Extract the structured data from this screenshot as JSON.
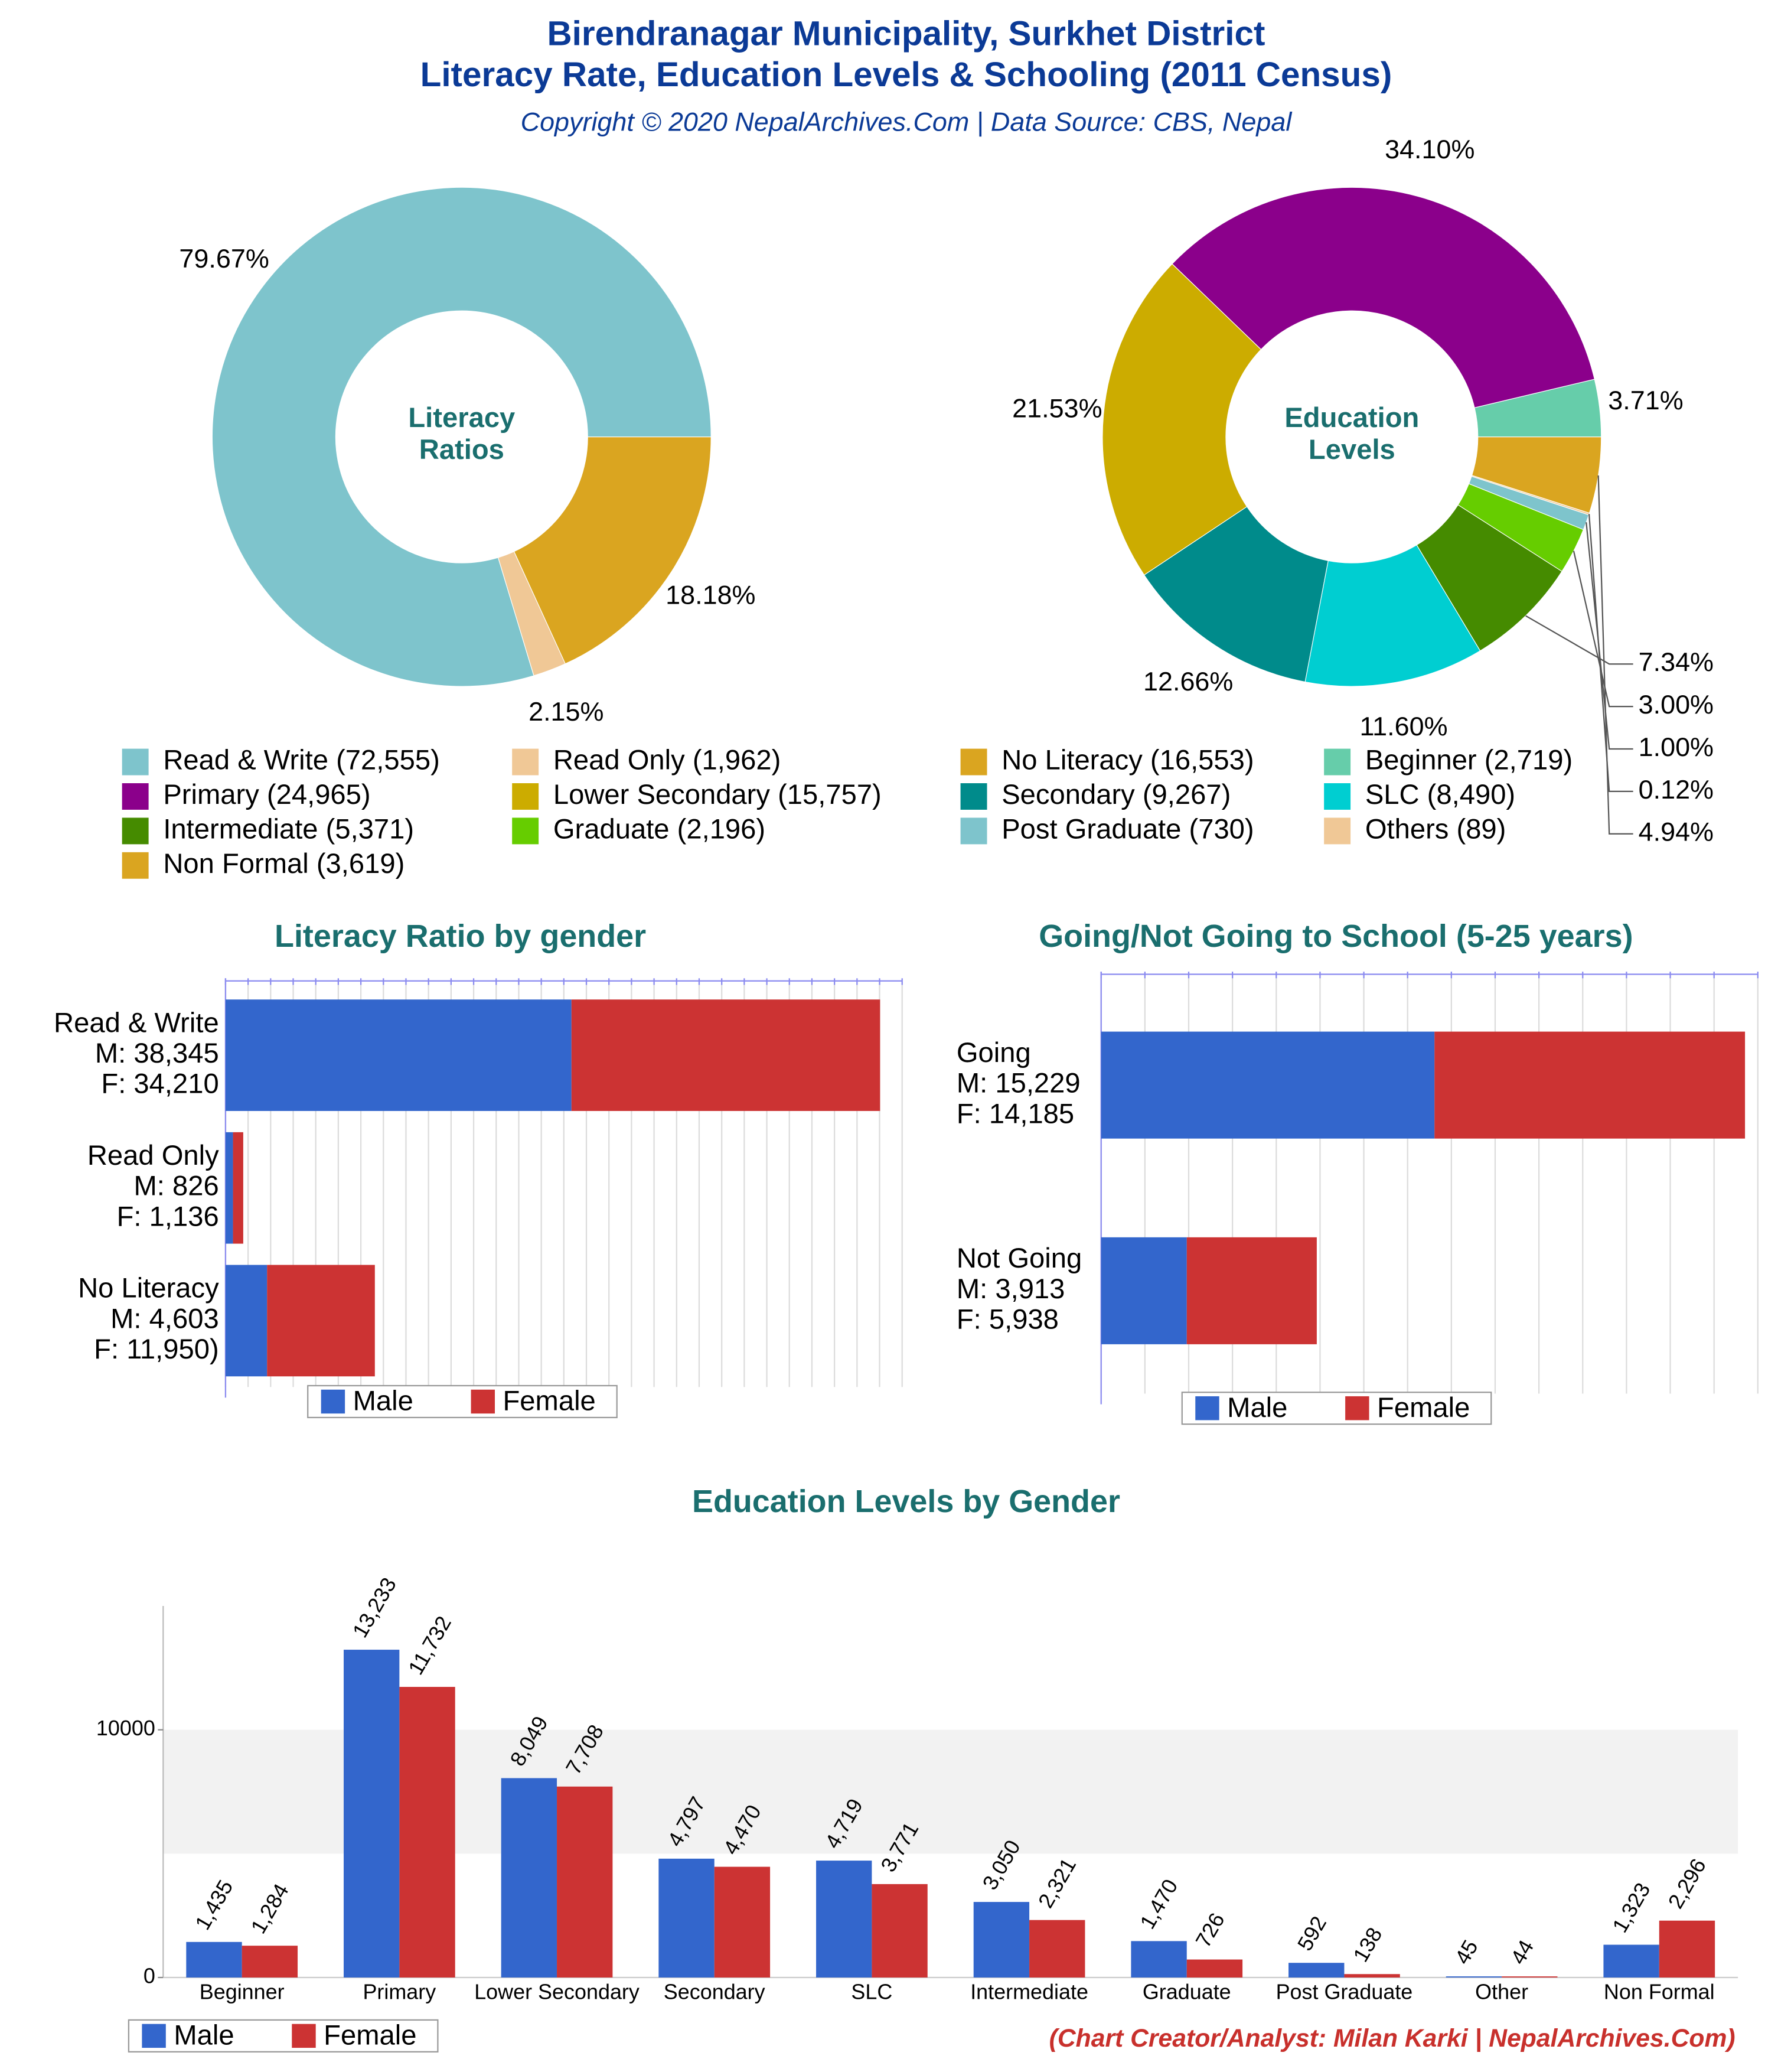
{
  "title": [
    "Birendranagar Municipality, Surkhet District",
    "Literacy Rate, Education Levels & Schooling (2011 Census)"
  ],
  "subtitle": "Copyright © 2020 NepalArchives.Com | Data Source: CBS, Nepal",
  "credit": "(Chart Creator/Analyst: Milan Karki | NepalArchives.Com)",
  "chart_data": [
    {
      "type": "donut",
      "center_label": [
        "Literacy",
        "Ratios"
      ],
      "categories": [
        "Read & Write (72,555)",
        "Read Only (1,962)",
        "No Literacy (16,553)"
      ],
      "values": [
        79.67,
        2.15,
        18.18
      ],
      "value_labels": [
        "79.67%",
        "2.15%",
        "18.18%"
      ],
      "colors": [
        "#7ec4cc",
        "#f0c896",
        "#daa520"
      ]
    },
    {
      "type": "donut",
      "center_label": [
        "Education",
        "Levels"
      ],
      "categories": [
        "Beginner (2,719)",
        "Primary (24,965)",
        "Lower Secondary (15,757)",
        "Secondary (9,267)",
        "SLC (8,490)",
        "Intermediate (5,371)",
        "Graduate (2,196)",
        "Post Graduate (730)",
        "Others (89)",
        "Non Formal (3,619)"
      ],
      "values": [
        3.71,
        34.1,
        21.53,
        12.66,
        11.6,
        7.34,
        3.0,
        1.0,
        0.12,
        4.94
      ],
      "value_labels": [
        "3.71%",
        "34.10%",
        "21.53%",
        "12.66%",
        "11.60%",
        "7.34%",
        "3.00%",
        "1.00%",
        "0.12%",
        "4.94%"
      ],
      "colors": [
        "#66cdaa",
        "#8b008b",
        "#ccac00",
        "#008b8b",
        "#00ced1",
        "#458b00",
        "#66cd00",
        "#7ec4cc",
        "#f0c896",
        "#daa520"
      ]
    },
    {
      "type": "hbar_stacked",
      "title": "Literacy Ratio by gender",
      "categories": [
        "Read & Write",
        "Read Only",
        "No Literacy"
      ],
      "series": [
        {
          "name": "Male",
          "color": "#3366cc",
          "values": [
            38345,
            826,
            4603
          ],
          "value_labels": [
            "M: 38,345",
            "M: 826",
            "M: 4,603"
          ]
        },
        {
          "name": "Female",
          "color": "#cc3333",
          "values": [
            34210,
            1136,
            11950
          ],
          "value_labels": [
            "F: 34,210",
            "F: 1,136",
            "F: 11,950)"
          ]
        }
      ],
      "xlim": [
        0,
        75000
      ],
      "xticks": [
        0,
        2500,
        5000,
        7500,
        10000,
        12500,
        15000,
        17500,
        20000,
        22500,
        25000,
        27500,
        30000,
        32500,
        35000,
        37500,
        40000,
        42500,
        45000,
        47500,
        50000,
        52500,
        55000,
        57500,
        60000,
        62500,
        65000,
        67500,
        70000,
        72500,
        75000
      ],
      "grid": true
    },
    {
      "type": "hbar_stacked",
      "title": "Going/Not Going to School (5-25 years)",
      "categories": [
        "Going",
        "Not Going"
      ],
      "series": [
        {
          "name": "Male",
          "color": "#3366cc",
          "values": [
            15229,
            3913
          ],
          "value_labels": [
            "M: 15,229",
            "M: 3,913"
          ]
        },
        {
          "name": "Female",
          "color": "#cc3333",
          "values": [
            14185,
            5938
          ],
          "value_labels": [
            "F: 14,185",
            "F: 5,938"
          ]
        }
      ],
      "xlim": [
        0,
        30000
      ],
      "xticks": [
        0,
        2000,
        4000,
        6000,
        8000,
        10000,
        12000,
        14000,
        16000,
        18000,
        20000,
        22000,
        24000,
        26000,
        28000,
        30000
      ],
      "grid": true
    },
    {
      "type": "bar_grouped",
      "title": "Education Levels by Gender",
      "categories": [
        "Beginner",
        "Primary",
        "Lower Secondary",
        "Secondary",
        "SLC",
        "Intermediate",
        "Graduate",
        "Post Graduate",
        "Other",
        "Non Formal"
      ],
      "series": [
        {
          "name": "Male",
          "color": "#3366cc",
          "values": [
            1435,
            13233,
            8049,
            4797,
            4719,
            3050,
            1470,
            592,
            45,
            1323
          ],
          "value_labels": [
            "1,435",
            "13,233",
            "8,049",
            "4,797",
            "4,719",
            "3,050",
            "1,470",
            "592",
            "45",
            "1,323"
          ]
        },
        {
          "name": "Female",
          "color": "#cc3333",
          "values": [
            1284,
            11732,
            7708,
            4470,
            3771,
            2321,
            726,
            138,
            44,
            2296
          ],
          "value_labels": [
            "1,284",
            "11,732",
            "7,708",
            "4,470",
            "3,771",
            "2,321",
            "726",
            "138",
            "44",
            "2,296"
          ]
        }
      ],
      "ylim": [
        0,
        15000
      ],
      "yticks": [
        0,
        10000
      ],
      "shaded_band": [
        5000,
        10000
      ]
    }
  ]
}
